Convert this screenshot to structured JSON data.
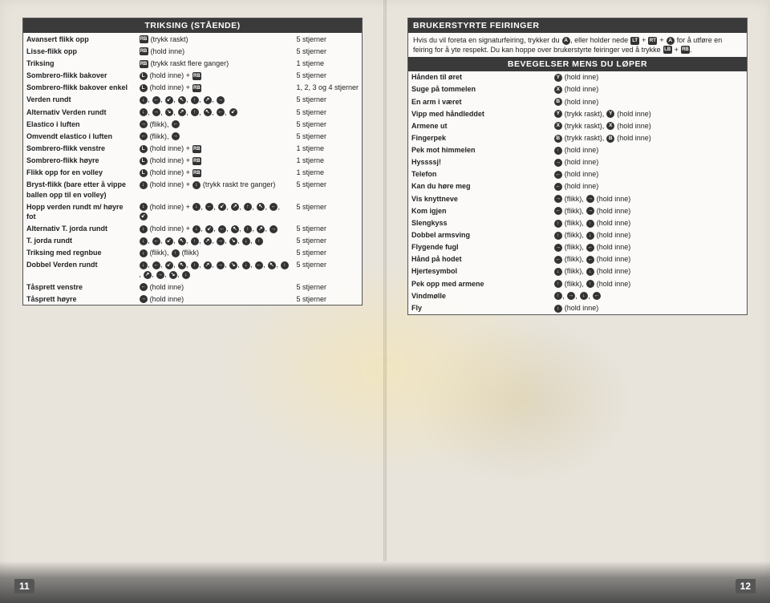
{
  "left": {
    "header": "TRIKSING (STÅENDE)",
    "rows": [
      {
        "name": "Avansert flikk opp",
        "input": "RB (trykk raskt)",
        "stars": "5 stjerner"
      },
      {
        "name": "Lisse-flikk opp",
        "input": "RB (hold inne)",
        "stars": "5 stjerner"
      },
      {
        "name": "Triksing",
        "input": "RB (trykk raskt flere ganger)",
        "stars": "1 stjerne"
      },
      {
        "name": "Sombrero-flikk bakover",
        "input": "L (hold inne) + RB",
        "stars": "5 stjerner"
      },
      {
        "name": "Sombrero-flikk bakover enkel",
        "input": "L (hold inne) + RB",
        "stars": "1, 2, 3 og 4 stjerner"
      },
      {
        "name": "Verden rundt",
        "input": "↓, ←, ↙, ↖, ↑, ↗, →",
        "stars": "5 stjerner"
      },
      {
        "name": "Alternativ Verden rundt",
        "input": "↓, →, ↘, ↗, ↑, ↖, ←, ↙",
        "stars": "5 stjerner"
      },
      {
        "name": "Elastico i luften",
        "input": "→ (flikk), ←",
        "stars": "5 stjerner"
      },
      {
        "name": "Omvendt elastico i luften",
        "input": "← (flikk), →",
        "stars": "5 stjerner"
      },
      {
        "name": "Sombrero-flikk venstre",
        "input": "L (hold inne) + RB",
        "stars": "1 stjerne"
      },
      {
        "name": "Sombrero-flikk høyre",
        "input": "L (hold inne) + RB",
        "stars": "1 stjerne"
      },
      {
        "name": "Flikk opp for en volley",
        "input": "L (hold inne) + RB",
        "stars": "1 stjerne"
      },
      {
        "name": "Bryst-flikk (bare etter å vippe ballen opp til en volley)",
        "input": "↕ (hold inne) + ↕ (trykk raskt tre ganger)",
        "stars": "5 stjerner"
      },
      {
        "name": "Hopp verden rundt m/ høyre fot",
        "input": "↕ (hold inne) + ↓, ←, ↙, ↗, ↑, ↖, ←, ↙",
        "stars": "5 stjerner"
      },
      {
        "name": "Alternativ T. jorda rundt",
        "input": "↕ (hold inne) + ↓, ↙, ←, ↖, ↑, ↗, →",
        "stars": "5 stjerner"
      },
      {
        "name": "T. jorda rundt",
        "input": "↓, ←, ↙, ↖, ↑, ↗, →, ↘, ↓, ↑",
        "stars": "5 stjerner"
      },
      {
        "name": "Triksing med regnbue",
        "input": "↓ (flikk), ↑ (flikk)",
        "stars": "5 stjerner"
      },
      {
        "name": "Dobbel Verden rundt",
        "input": "↓, ←, ↙, ↖, ↑, ↗, →, ↘, ↓, ←, ↖, ↑, ↗, →, ↘, ↓",
        "stars": "5 stjerner"
      },
      {
        "name": "Tåsprett venstre",
        "input": "← (hold inne)",
        "stars": "5 stjerner"
      },
      {
        "name": "Tåsprett høyre",
        "input": "→ (hold inne)",
        "stars": "5 stjerner"
      }
    ]
  },
  "right": {
    "header1": "BRUKERSTYRTE FEIRINGER",
    "intro": "Hvis du vil foreta en signaturfeiring, trykker du A, eller holder nede LT + RT + A for å utføre en feiring for å yte respekt. Du kan hoppe over brukerstyrte feiringer ved å trykke LB + RB.",
    "header2": "BEVEGELSER MENS DU LØPER",
    "rows": [
      {
        "name": "Hånden til øret",
        "input": "Y (hold inne)"
      },
      {
        "name": "Suge på tommelen",
        "input": "X (hold inne)"
      },
      {
        "name": "En arm i været",
        "input": "B (hold inne)"
      },
      {
        "name": "Vipp med håndleddet",
        "input": "Y (trykk raskt), Y (hold inne)"
      },
      {
        "name": "Armene ut",
        "input": "X (trykk raskt), X (hold inne)"
      },
      {
        "name": "Fingerpek",
        "input": "B (trykk raskt), B (hold inne)"
      },
      {
        "name": "Pek mot himmelen",
        "input": "↑ (hold inne)"
      },
      {
        "name": "Hyssssj!",
        "input": "→ (hold inne)"
      },
      {
        "name": "Telefon",
        "input": "← (hold inne)"
      },
      {
        "name": "Kan du høre meg",
        "input": "← (hold inne)"
      },
      {
        "name": "Vis knyttneve",
        "input": "→ (flikk), → (hold inne)"
      },
      {
        "name": "Kom igjen",
        "input": "← (flikk), → (hold inne)"
      },
      {
        "name": "Slengkyss",
        "input": "↑ (flikk), ↑ (hold inne)"
      },
      {
        "name": "Dobbel armsving",
        "input": "↑ (flikk), ↓ (hold inne)"
      },
      {
        "name": "Flygende fugl",
        "input": "→ (flikk), ← (hold inne)"
      },
      {
        "name": "Hånd på hodet",
        "input": "← (flikk), ← (hold inne)"
      },
      {
        "name": "Hjertesymbol",
        "input": "↓ (flikk), ↓ (hold inne)"
      },
      {
        "name": "Pek opp med armene",
        "input": "↑ (flikk), ↑ (hold inne)"
      },
      {
        "name": "Vindmølle",
        "input": "↑, →, ↓, ←"
      },
      {
        "name": "Fly",
        "input": "↕ (hold inne)"
      }
    ]
  },
  "pagenum_left": "11",
  "pagenum_right": "12"
}
